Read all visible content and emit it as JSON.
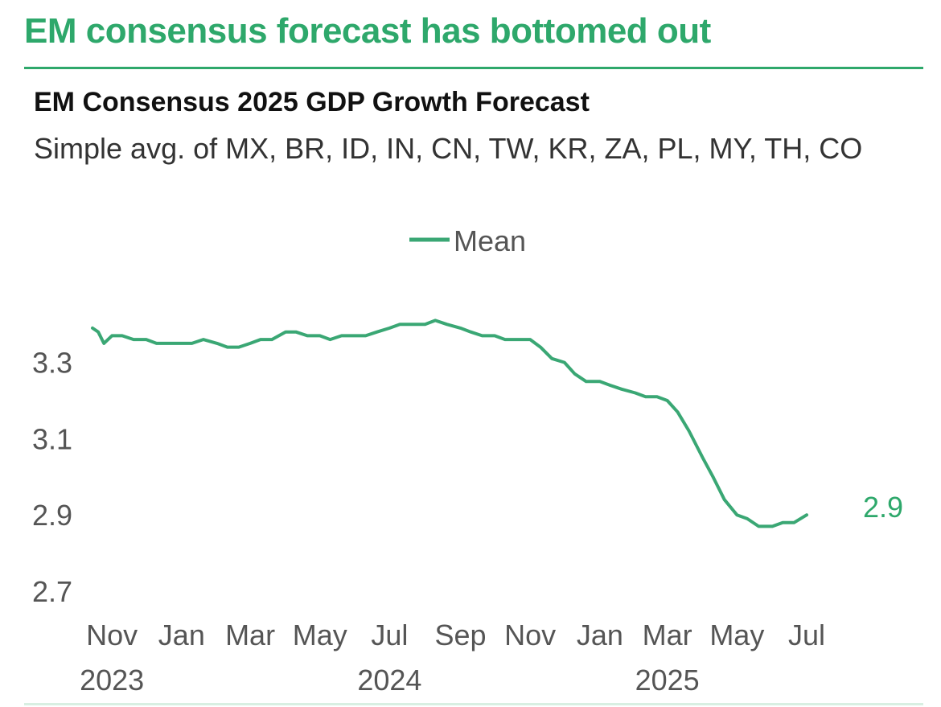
{
  "headline": "EM consensus forecast has bottomed out",
  "colors": {
    "accent": "#2ea86b",
    "line": "#3aa774",
    "text": "#111111",
    "muted": "#555555"
  },
  "chart_data": {
    "type": "line",
    "title": "EM Consensus 2025 GDP Growth Forecast",
    "subtitle": "Simple avg. of MX, BR, ID, IN, CN, TW, KR, ZA, PL, MY, TH, CO",
    "legend": {
      "position": "top-center",
      "entries": [
        "Mean"
      ]
    },
    "xlabel": "",
    "ylabel": "",
    "ylim": [
      2.7,
      3.47
    ],
    "y_ticks": [
      3.3,
      3.1,
      2.9,
      2.7
    ],
    "x_range": [
      "2023-10-15",
      "2025-07-20"
    ],
    "x_ticks": [
      {
        "date": "2023-11-01",
        "label": "Nov",
        "year": "2023"
      },
      {
        "date": "2024-01-01",
        "label": "Jan",
        "year": ""
      },
      {
        "date": "2024-03-01",
        "label": "Mar",
        "year": ""
      },
      {
        "date": "2024-05-01",
        "label": "May",
        "year": ""
      },
      {
        "date": "2024-07-01",
        "label": "Jul",
        "year": "2024"
      },
      {
        "date": "2024-09-01",
        "label": "Sep",
        "year": ""
      },
      {
        "date": "2024-11-01",
        "label": "Nov",
        "year": ""
      },
      {
        "date": "2025-01-01",
        "label": "Jan",
        "year": ""
      },
      {
        "date": "2025-03-01",
        "label": "Mar",
        "year": "2025"
      },
      {
        "date": "2025-05-01",
        "label": "May",
        "year": ""
      },
      {
        "date": "2025-07-01",
        "label": "Jul",
        "year": ""
      }
    ],
    "end_label": "2.9",
    "series": [
      {
        "name": "Mean",
        "x": [
          "2023-10-15",
          "2023-10-20",
          "2023-10-25",
          "2023-11-01",
          "2023-11-10",
          "2023-11-20",
          "2023-12-01",
          "2023-12-10",
          "2023-12-20",
          "2024-01-01",
          "2024-01-10",
          "2024-01-20",
          "2024-02-01",
          "2024-02-10",
          "2024-02-20",
          "2024-03-01",
          "2024-03-10",
          "2024-03-20",
          "2024-04-01",
          "2024-04-10",
          "2024-04-20",
          "2024-05-01",
          "2024-05-10",
          "2024-05-20",
          "2024-06-01",
          "2024-06-10",
          "2024-06-20",
          "2024-07-01",
          "2024-07-10",
          "2024-07-20",
          "2024-08-01",
          "2024-08-10",
          "2024-08-20",
          "2024-09-01",
          "2024-09-10",
          "2024-09-20",
          "2024-10-01",
          "2024-10-10",
          "2024-10-20",
          "2024-11-01",
          "2024-11-10",
          "2024-11-20",
          "2024-12-01",
          "2024-12-10",
          "2024-12-20",
          "2025-01-01",
          "2025-01-10",
          "2025-01-20",
          "2025-02-01",
          "2025-02-10",
          "2025-02-20",
          "2025-03-01",
          "2025-03-10",
          "2025-03-20",
          "2025-04-01",
          "2025-04-10",
          "2025-04-20",
          "2025-05-01",
          "2025-05-10",
          "2025-05-20",
          "2025-06-01",
          "2025-06-10",
          "2025-06-20",
          "2025-07-01"
        ],
        "values": [
          3.39,
          3.38,
          3.35,
          3.37,
          3.37,
          3.36,
          3.36,
          3.35,
          3.35,
          3.35,
          3.35,
          3.36,
          3.35,
          3.34,
          3.34,
          3.35,
          3.36,
          3.36,
          3.38,
          3.38,
          3.37,
          3.37,
          3.36,
          3.37,
          3.37,
          3.37,
          3.38,
          3.39,
          3.4,
          3.4,
          3.4,
          3.41,
          3.4,
          3.39,
          3.38,
          3.37,
          3.37,
          3.36,
          3.36,
          3.36,
          3.34,
          3.31,
          3.3,
          3.27,
          3.25,
          3.25,
          3.24,
          3.23,
          3.22,
          3.21,
          3.21,
          3.2,
          3.17,
          3.12,
          3.05,
          3.0,
          2.94,
          2.9,
          2.89,
          2.87,
          2.87,
          2.88,
          2.88,
          2.9
        ]
      }
    ]
  }
}
